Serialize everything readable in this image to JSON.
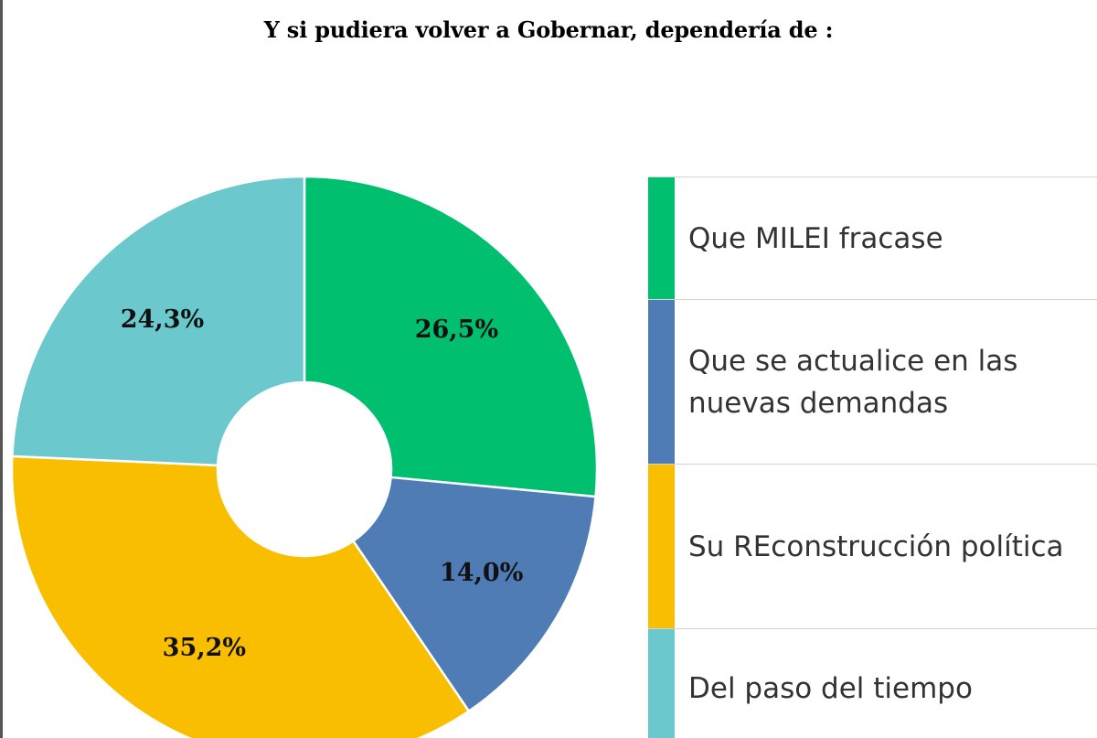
{
  "chart_data": {
    "type": "pie",
    "title": "Y si pudiera volver a Gobernar, dependería de :",
    "donut": true,
    "legend_position": "right",
    "slices": [
      {
        "label": "Que MILEI fracase",
        "value": 26.5,
        "display": "26,5%",
        "color": "#00bf6f"
      },
      {
        "label": "Que se actualice en las nuevas demandas",
        "value": 14.0,
        "display": "14,0%",
        "color": "#507cb6"
      },
      {
        "label": "Su REconstrucción política",
        "value": 35.2,
        "display": "35,2%",
        "color": "#f9be00"
      },
      {
        "label": "Del paso del tiempo",
        "value": 24.3,
        "display": "24,3%",
        "color": "#6bc8cd"
      }
    ]
  },
  "legend": {
    "items": [
      {
        "label": "Que MILEI fracase",
        "color": "#00bf6f"
      },
      {
        "label": "Que se actualice en las nuevas demandas",
        "color": "#507cb6"
      },
      {
        "label": "Su REconstrucción política",
        "color": "#f9be00"
      },
      {
        "label": "Del paso del tiempo",
        "color": "#6bc8cd"
      }
    ]
  }
}
